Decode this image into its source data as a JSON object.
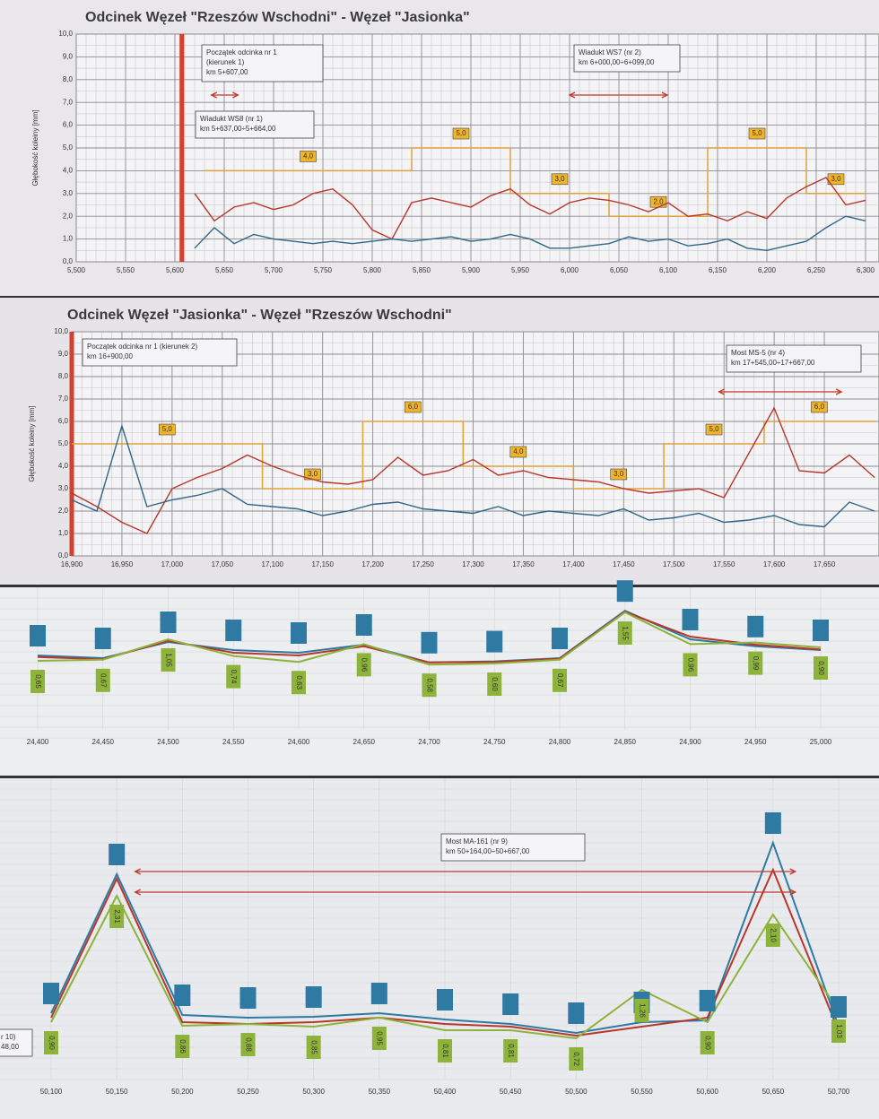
{
  "chart_data": [
    {
      "type": "line",
      "title": "Odcinek Węzeł \"Rzeszów Wschodni\" - Węzeł \"Jasionka\"",
      "ylabel": "Głębokość koleiny [mm]",
      "xlim": [
        5.5,
        6.3
      ],
      "xticks": [
        {
          "value": 5.5,
          "label": "5,500"
        },
        {
          "value": 5.55,
          "label": "5,550"
        },
        {
          "value": 5.6,
          "label": "5,600"
        },
        {
          "value": 5.65,
          "label": "5,650"
        },
        {
          "value": 5.7,
          "label": "5,700"
        },
        {
          "value": 5.75,
          "label": "5,750"
        },
        {
          "value": 5.8,
          "label": "5,800"
        },
        {
          "value": 5.85,
          "label": "5,850"
        },
        {
          "value": 5.9,
          "label": "5,900"
        },
        {
          "value": 5.95,
          "label": "5,950"
        },
        {
          "value": 6.0,
          "label": "6,000"
        },
        {
          "value": 6.05,
          "label": "6,050"
        },
        {
          "value": 6.1,
          "label": "6,100"
        },
        {
          "value": 6.15,
          "label": "6,150"
        },
        {
          "value": 6.2,
          "label": "6,200"
        },
        {
          "value": 6.25,
          "label": "6,250"
        },
        {
          "value": 6.3,
          "label": "6,300"
        }
      ],
      "ylim": [
        0,
        10
      ],
      "yticks": [
        {
          "value": 0,
          "label": "0,0"
        },
        {
          "value": 1,
          "label": "1,0"
        },
        {
          "value": 2,
          "label": "2,0"
        },
        {
          "value": 3,
          "label": "3,0"
        },
        {
          "value": 4,
          "label": "4,0"
        },
        {
          "value": 5,
          "label": "5,0"
        },
        {
          "value": 6,
          "label": "6,0"
        },
        {
          "value": 7,
          "label": "7,0"
        },
        {
          "value": 8,
          "label": "8,0"
        },
        {
          "value": 9,
          "label": "9,0"
        },
        {
          "value": 10,
          "label": "10,0"
        }
      ],
      "grid": true,
      "start_km": 5.607,
      "x": [
        5.62,
        5.64,
        5.66,
        5.68,
        5.7,
        5.72,
        5.74,
        5.76,
        5.78,
        5.8,
        5.82,
        5.84,
        5.86,
        5.88,
        5.9,
        5.92,
        5.94,
        5.96,
        5.98,
        6.0,
        6.02,
        6.04,
        6.06,
        6.08,
        6.1,
        6.12,
        6.14,
        6.16,
        6.18,
        6.2,
        6.22,
        6.24,
        6.26,
        6.28,
        6.3
      ],
      "series": [
        {
          "color": "#b8362a",
          "values": [
            3.0,
            1.8,
            2.4,
            2.6,
            2.3,
            2.5,
            3.0,
            3.2,
            2.5,
            1.4,
            1.0,
            2.6,
            2.8,
            2.6,
            2.4,
            2.9,
            3.2,
            2.5,
            2.1,
            2.6,
            2.8,
            2.7,
            2.5,
            2.2,
            2.6,
            2.0,
            2.1,
            1.8,
            2.2,
            1.9,
            2.8,
            3.3,
            3.7,
            2.5,
            2.7
          ]
        },
        {
          "color": "#2f6788",
          "values": [
            0.6,
            1.5,
            0.8,
            1.2,
            1.0,
            0.9,
            0.8,
            0.9,
            0.8,
            0.9,
            1.0,
            0.9,
            1.0,
            1.1,
            0.9,
            1.0,
            1.2,
            1.0,
            0.6,
            0.6,
            0.7,
            0.8,
            1.1,
            0.9,
            1.0,
            0.7,
            0.8,
            1.0,
            0.6,
            0.5,
            0.7,
            0.9,
            1.5,
            2.0,
            1.8
          ]
        }
      ],
      "limit_color": "#e0a23a",
      "limits": [
        {
          "from": 5.63,
          "to": 5.84,
          "value": 4,
          "label": "4,0"
        },
        {
          "from": 5.84,
          "to": 5.94,
          "value": 5,
          "label": "5,0"
        },
        {
          "from": 5.94,
          "to": 6.04,
          "value": 3,
          "label": "3,0"
        },
        {
          "from": 6.04,
          "to": 6.14,
          "value": 2,
          "label": "2,0"
        },
        {
          "from": 6.14,
          "to": 6.24,
          "value": 5,
          "label": "5,0"
        },
        {
          "from": 6.24,
          "to": 6.3,
          "value": 3,
          "label": "3,0"
        }
      ],
      "annotations": [
        {
          "lines": [
            "Początek odcinka nr 1",
            "(kierunek 1)",
            "km 5+607,00"
          ]
        },
        {
          "lines": [
            "Wiadukt WS8 (nr 1)",
            "km 5+637,00÷5+664,00"
          ]
        },
        {
          "lines": [
            "Wiadukt WS7 (nr 2)",
            "km 6+000,00÷6+099,00"
          ]
        }
      ],
      "spans": [
        [
          5.637,
          5.664
        ],
        [
          6.0,
          6.099
        ]
      ]
    },
    {
      "type": "line",
      "title": "Odcinek Węzeł \"Jasionka\" - Węzeł \"Rzeszów Wschodni\"",
      "ylabel": "Głębokość koleiny [mm]",
      "xlim": [
        16.9,
        17.7
      ],
      "xticks": [
        {
          "value": 16.9,
          "label": "16,900"
        },
        {
          "value": 16.95,
          "label": "16,950"
        },
        {
          "value": 17.0,
          "label": "17,000"
        },
        {
          "value": 17.05,
          "label": "17,050"
        },
        {
          "value": 17.1,
          "label": "17,100"
        },
        {
          "value": 17.15,
          "label": "17,150"
        },
        {
          "value": 17.2,
          "label": "17,200"
        },
        {
          "value": 17.25,
          "label": "17,250"
        },
        {
          "value": 17.3,
          "label": "17,300"
        },
        {
          "value": 17.35,
          "label": "17,350"
        },
        {
          "value": 17.4,
          "label": "17,400"
        },
        {
          "value": 17.45,
          "label": "17,450"
        },
        {
          "value": 17.5,
          "label": "17,500"
        },
        {
          "value": 17.55,
          "label": "17,550"
        },
        {
          "value": 17.6,
          "label": "17,600"
        },
        {
          "value": 17.65,
          "label": "17,650"
        }
      ],
      "ylim": [
        0,
        10
      ],
      "yticks": [
        {
          "value": 0,
          "label": "0,0"
        },
        {
          "value": 1,
          "label": "1,0"
        },
        {
          "value": 2,
          "label": "2,0"
        },
        {
          "value": 3,
          "label": "3,0"
        },
        {
          "value": 4,
          "label": "4,0"
        },
        {
          "value": 5,
          "label": "5,0"
        },
        {
          "value": 6,
          "label": "6,0"
        },
        {
          "value": 7,
          "label": "7,0"
        },
        {
          "value": 8,
          "label": "8,0"
        },
        {
          "value": 9,
          "label": "9,0"
        },
        {
          "value": 10,
          "label": "10,0"
        }
      ],
      "grid": true,
      "start_km": 16.9,
      "x": [
        16.9,
        16.925,
        16.95,
        16.975,
        17.0,
        17.025,
        17.05,
        17.075,
        17.1,
        17.125,
        17.15,
        17.175,
        17.2,
        17.225,
        17.25,
        17.275,
        17.3,
        17.325,
        17.35,
        17.375,
        17.4,
        17.425,
        17.45,
        17.475,
        17.5,
        17.525,
        17.55,
        17.575,
        17.6,
        17.625,
        17.65,
        17.675,
        17.7
      ],
      "series": [
        {
          "color": "#b8362a",
          "values": [
            2.8,
            2.2,
            1.5,
            1.0,
            3.0,
            3.5,
            3.9,
            4.5,
            4.0,
            3.6,
            3.3,
            3.2,
            3.4,
            4.4,
            3.6,
            3.8,
            4.3,
            3.6,
            3.8,
            3.5,
            3.4,
            3.3,
            3.0,
            2.8,
            2.9,
            3.0,
            2.6,
            4.6,
            6.6,
            3.8,
            3.7,
            4.5,
            3.5
          ]
        },
        {
          "color": "#2f6788",
          "values": [
            2.5,
            2.0,
            5.8,
            2.2,
            2.5,
            2.7,
            3.0,
            2.3,
            2.2,
            2.1,
            1.8,
            2.0,
            2.3,
            2.4,
            2.1,
            2.0,
            1.9,
            2.2,
            1.8,
            2.0,
            1.9,
            1.8,
            2.1,
            1.6,
            1.7,
            1.9,
            1.5,
            1.6,
            1.8,
            1.4,
            1.3,
            2.4,
            2.0
          ]
        }
      ],
      "limit_color": "#e0a23a",
      "limits": [
        {
          "from": 16.9,
          "to": 17.09,
          "value": 5,
          "label": "5,0"
        },
        {
          "from": 17.09,
          "to": 17.19,
          "value": 3,
          "label": "3,0"
        },
        {
          "from": 17.19,
          "to": 17.29,
          "value": 6,
          "label": "6,0"
        },
        {
          "from": 17.29,
          "to": 17.4,
          "value": 4,
          "label": "4,0"
        },
        {
          "from": 17.4,
          "to": 17.49,
          "value": 3,
          "label": "3,0"
        },
        {
          "from": 17.49,
          "to": 17.59,
          "value": 5,
          "label": "5,0"
        },
        {
          "from": 17.59,
          "to": 17.7,
          "value": 6,
          "label": "6,0"
        }
      ],
      "annotations": [
        {
          "lines": [
            "Początek odcinka nr 1 (kierunek 2)",
            "km 16+900,00"
          ]
        },
        {
          "lines": [
            "Most MS-5 (nr 4)",
            "km 17+545,00÷17+667,00"
          ]
        }
      ],
      "spans": [
        [
          17.545,
          17.667
        ]
      ]
    },
    {
      "type": "marker-line",
      "xlim": [
        24.4,
        25.0
      ],
      "xticks": [
        {
          "value": 24.4,
          "label": "24,400"
        },
        {
          "value": 24.45,
          "label": "24,450"
        },
        {
          "value": 24.5,
          "label": "24,500"
        },
        {
          "value": 24.55,
          "label": "24,550"
        },
        {
          "value": 24.6,
          "label": "24,600"
        },
        {
          "value": 24.65,
          "label": "24,650"
        },
        {
          "value": 24.7,
          "label": "24,700"
        },
        {
          "value": 24.75,
          "label": "24,750"
        },
        {
          "value": 24.8,
          "label": "24,800"
        },
        {
          "value": 24.85,
          "label": "24,850"
        },
        {
          "value": 24.9,
          "label": "24,900"
        },
        {
          "value": 24.95,
          "label": "24,950"
        },
        {
          "value": 25.0,
          "label": "25,000"
        }
      ],
      "ylim": [
        0,
        2
      ],
      "x": [
        24.4,
        24.45,
        24.5,
        24.55,
        24.6,
        24.65,
        24.7,
        24.75,
        24.8,
        24.85,
        24.9,
        24.95,
        25.0
      ],
      "series": [
        {
          "color": "#2f7aa3",
          "values": [
            0.75,
            0.7,
            1.0,
            0.85,
            0.8,
            0.95,
            0.62,
            0.64,
            0.7,
            1.58,
            1.05,
            0.92,
            0.85
          ]
        },
        {
          "color": "#b8362a",
          "values": [
            0.72,
            0.68,
            1.02,
            0.8,
            0.75,
            0.92,
            0.62,
            0.63,
            0.69,
            1.56,
            1.1,
            0.95,
            0.86
          ]
        },
        {
          "color": "#8db33a",
          "values": [
            0.65,
            0.67,
            1.05,
            0.74,
            0.63,
            0.96,
            0.58,
            0.6,
            0.67,
            1.55,
            0.96,
            0.99,
            0.9
          ],
          "value_labels": [
            "0,65",
            "0,67",
            "1,05",
            "0,74",
            "0,63",
            "0,96",
            "0,58",
            "0,60",
            "0,67",
            "1,55",
            "0,96",
            "0,99",
            "0,90"
          ]
        }
      ]
    },
    {
      "type": "marker-line",
      "xlim": [
        50.1,
        50.7
      ],
      "xticks": [
        {
          "value": 50.1,
          "label": "50,100"
        },
        {
          "value": 50.15,
          "label": "50,150"
        },
        {
          "value": 50.2,
          "label": "50,200"
        },
        {
          "value": 50.25,
          "label": "50,250"
        },
        {
          "value": 50.3,
          "label": "50,300"
        },
        {
          "value": 50.35,
          "label": "50,350"
        },
        {
          "value": 50.4,
          "label": "50,400"
        },
        {
          "value": 50.45,
          "label": "50,450"
        },
        {
          "value": 50.5,
          "label": "50,500"
        },
        {
          "value": 50.55,
          "label": "50,550"
        },
        {
          "value": 50.6,
          "label": "50,600"
        },
        {
          "value": 50.65,
          "label": "50,650"
        },
        {
          "value": 50.7,
          "label": "50,700"
        }
      ],
      "ylim": [
        0,
        3.5
      ],
      "x": [
        50.1,
        50.15,
        50.2,
        50.25,
        50.3,
        50.35,
        50.4,
        50.45,
        50.5,
        50.55,
        50.6,
        50.65,
        50.7
      ],
      "series": [
        {
          "color": "#2f7aa3",
          "values": [
            1.0,
            2.55,
            0.98,
            0.95,
            0.96,
            1.0,
            0.93,
            0.88,
            0.78,
            0.9,
            0.92,
            2.9,
            0.85
          ]
        },
        {
          "color": "#b8362a",
          "values": [
            0.95,
            2.5,
            0.9,
            0.88,
            0.9,
            0.95,
            0.88,
            0.85,
            0.75,
            0.85,
            0.95,
            2.6,
            0.8
          ]
        },
        {
          "color": "#8db33a",
          "values": [
            0.9,
            2.31,
            0.86,
            0.88,
            0.85,
            0.95,
            0.81,
            0.81,
            0.72,
            1.26,
            0.9,
            2.1,
            1.03
          ],
          "value_labels": [
            "0,90",
            "2,31",
            "0,86",
            "0,88",
            "0,85",
            "0,95",
            "0,81",
            "0,81",
            "0,72",
            "1,26",
            "0,90",
            "2,10",
            "1,03"
          ]
        }
      ],
      "annotations": [
        {
          "lines": [
            "Most MA-161 (nr 9)",
            "km 50+164,00÷50+667,00"
          ]
        },
        {
          "lines": [
            "r 10)",
            "48,00"
          ]
        }
      ],
      "spans": [
        [
          50.164,
          50.667
        ],
        [
          50.164,
          50.667
        ]
      ]
    }
  ]
}
